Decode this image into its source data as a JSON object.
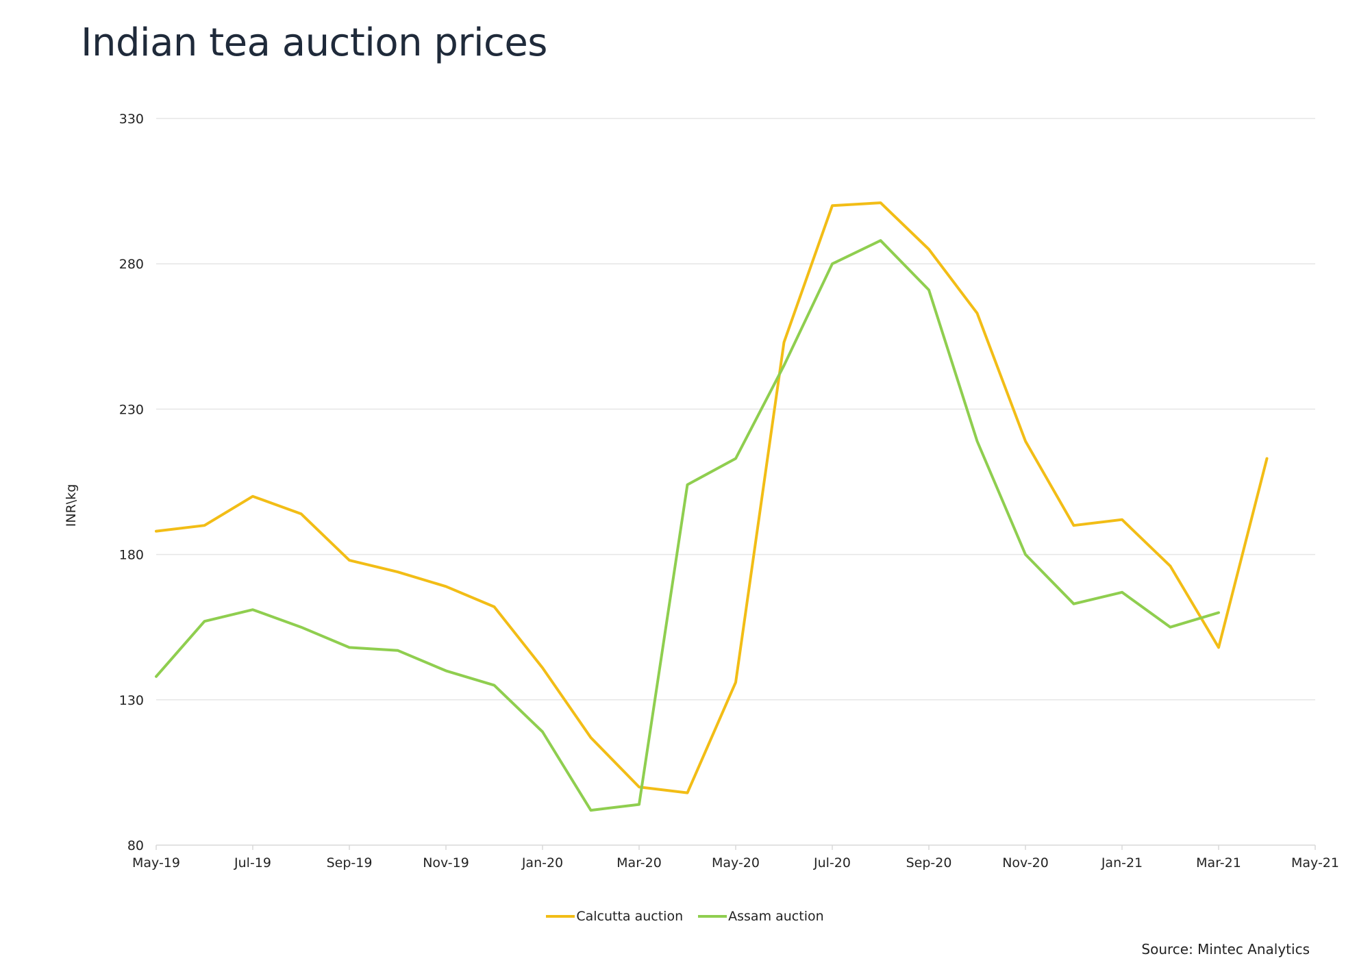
{
  "title": "Indian tea auction prices",
  "source": "Source: Mintec Analytics",
  "colors": {
    "calcutta": "#f2bd16",
    "assam": "#8fce4f",
    "grid": "#e6e6e6"
  },
  "chart_data": {
    "type": "line",
    "title": "Indian tea auction prices",
    "ylabel": "INR\\kg",
    "xlabel": "",
    "ylim": [
      80,
      330
    ],
    "yticks": [
      80,
      130,
      180,
      230,
      280,
      330
    ],
    "xticks": [
      "May-19",
      "Jul-19",
      "Sep-19",
      "Nov-19",
      "Jan-20",
      "Mar-20",
      "May-20",
      "Jul-20",
      "Sep-20",
      "Nov-20",
      "Jan-21",
      "Mar-21",
      "May-21"
    ],
    "x": [
      "May-19",
      "Jun-19",
      "Jul-19",
      "Aug-19",
      "Sep-19",
      "Oct-19",
      "Nov-19",
      "Dec-19",
      "Jan-20",
      "Feb-20",
      "Mar-20",
      "Apr-20",
      "May-20",
      "Jun-20",
      "Jul-20",
      "Aug-20",
      "Sep-20",
      "Oct-20",
      "Nov-20",
      "Dec-20",
      "Jan-21",
      "Feb-21",
      "Mar-21",
      "Apr-21"
    ],
    "grid": true,
    "legend_position": "bottom",
    "series": [
      {
        "name": "Calcutta auction",
        "values": [
          188,
          190,
          200,
          194,
          178,
          174,
          169,
          162,
          141,
          117,
          100,
          98,
          136,
          253,
          300,
          301,
          285,
          263,
          219,
          190,
          192,
          176,
          148,
          213
        ]
      },
      {
        "name": "Assam auction",
        "values": [
          138,
          157,
          161,
          155,
          148,
          147,
          140,
          135,
          119,
          92,
          94,
          204,
          213,
          245,
          280,
          288,
          271,
          219,
          180,
          163,
          167,
          155,
          160,
          null
        ]
      }
    ]
  }
}
